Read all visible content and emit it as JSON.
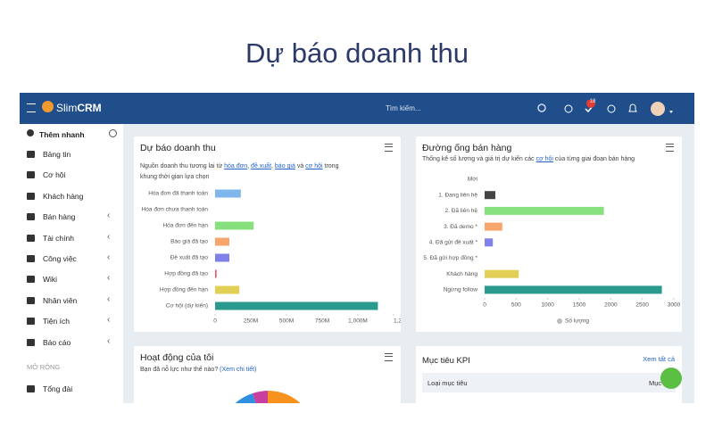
{
  "header": {
    "title": "Dự báo doanh thu"
  },
  "topbar": {
    "brand_prefix": "Slim",
    "brand_suffix": "CRM",
    "search": "Tìm kiếm...",
    "badge": 18
  },
  "sidebar": {
    "quick_add": "Thêm nhanh",
    "items": [
      "Bảng tin",
      "Cơ hội",
      "Khách hàng",
      "Bán hàng",
      "Tài chính",
      "Công việc",
      "Wiki",
      "Nhân viên",
      "Tiện ích",
      "Báo cáo"
    ],
    "expandable": [
      false,
      false,
      false,
      true,
      true,
      true,
      true,
      true,
      true,
      true
    ],
    "section": "MỞ RỘNG",
    "extra": [
      "Tổng đài"
    ]
  },
  "widgets": {
    "revenue": {
      "title": "Dự báo doanh thu",
      "description": [
        "Nguồn doanh thu tương lai từ ",
        "hóa đơn",
        ", ",
        "đề xuất",
        ", ",
        "báo giá",
        " và ",
        "cơ hội",
        " trong khung thời gian lựa chọn"
      ],
      "chart": {
        "type": "bar",
        "orientation": "horizontal",
        "categories": [
          "Hóa đơn đã thanh toán",
          "Hóa đơn chưa thanh toán",
          "Hóa đơn đến hạn",
          "Báo giá đã tạo",
          "Đề xuất đã tạo",
          "Hợp đồng đã tạo",
          "Hợp đồng đến hạn",
          "Cơ hội (dự kiến)"
        ],
        "values": [
          180,
          0,
          270,
          100,
          100,
          10,
          170,
          1140
        ],
        "colors": [
          "#7fb6ec",
          "#7fb6ec",
          "#86e07e",
          "#f6a66c",
          "#7f80ea",
          "#ea4f5f",
          "#e2cf55",
          "#2b9a8e"
        ],
        "xlim": [
          0,
          1250
        ],
        "xticks": [
          0,
          {
            "value": 250,
            "label": "250M"
          },
          {
            "value": 500,
            "label": "500M"
          },
          {
            "value": 750,
            "label": "750M"
          },
          {
            "value": 1000,
            "label": "1,000M"
          },
          {
            "value": 1250,
            "label": "1,25..."
          }
        ]
      }
    },
    "pipeline": {
      "title": "Đường ống bán hàng",
      "description": [
        "Thống kê số lượng và giá trị dự kiến các ",
        "cơ hội",
        " của từng giai đoạn bán hàng"
      ],
      "chart": {
        "type": "bar",
        "orientation": "horizontal",
        "categories": [
          "Mới",
          "1. Đang liên hệ",
          "2. Đã liên hệ",
          "3. Đã demo *",
          "4. Đã gửi đề xuất *",
          "5. Đã gửi hợp đồng *",
          "Khách hàng",
          "Ngừng follow"
        ],
        "values": [
          0,
          170,
          1890,
          280,
          130,
          0,
          540,
          2810
        ],
        "colors": [
          "#444444",
          "#444444",
          "#86e07e",
          "#f6a66c",
          "#7f80ea",
          "#ea4f5f",
          "#e2cf55",
          "#2b9a8e"
        ],
        "xlim": [
          0,
          3000
        ],
        "xticks": [
          0,
          500,
          1000,
          1500,
          2000,
          2500,
          3000
        ],
        "series_name": "Số lượng",
        "legend": true
      }
    },
    "activity": {
      "title": "Hoạt động của tôi",
      "question": "Bạn đã nỗ lực như thế nào?",
      "link": "(Xem chi tiết)"
    },
    "kpi": {
      "title": "Mục tiêu KPI",
      "link": "Xem tất cả",
      "columns": [
        "Loại mục tiêu",
        "Mục"
      ]
    }
  }
}
